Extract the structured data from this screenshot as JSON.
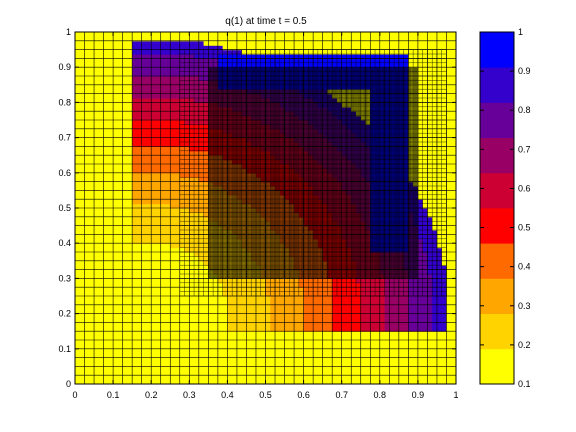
{
  "chart_data": {
    "type": "heatmap",
    "title": "q(1)   at time t = 0.5",
    "xlabel": "",
    "ylabel": "",
    "xlim": [
      0,
      1
    ],
    "ylim": [
      0,
      1
    ],
    "xticks": [
      0,
      0.1,
      0.2,
      0.3,
      0.4,
      0.5,
      0.6,
      0.7,
      0.8,
      0.9,
      1
    ],
    "xtick_labels": [
      "0",
      "0.1",
      "0.2",
      "0.3",
      "0.4",
      "0.5",
      "0.6",
      "0.7",
      "0.8",
      "0.9",
      "1"
    ],
    "yticks": [
      0,
      0.1,
      0.2,
      0.3,
      0.4,
      0.5,
      0.6,
      0.7,
      0.8,
      0.9,
      1
    ],
    "ytick_labels": [
      "0",
      "0.1",
      "0.2",
      "0.3",
      "0.4",
      "0.5",
      "0.6",
      "0.7",
      "0.8",
      "0.9",
      "1"
    ],
    "colorbar": {
      "range": [
        0.1,
        1
      ],
      "ticks": [
        0.1,
        0.2,
        0.3,
        0.4,
        0.5,
        0.6,
        0.7,
        0.8,
        0.9,
        1
      ],
      "tick_labels": [
        "0.1",
        "0.2",
        "0.3",
        "0.4",
        "0.5",
        "0.6",
        "0.7",
        "0.8",
        "0.9",
        "1"
      ],
      "colors": [
        "#ffff00",
        "#ffd300",
        "#ffa600",
        "#ff6a00",
        "#ff0000",
        "#cc0033",
        "#990066",
        "#660099",
        "#3300cc",
        "#0000ff"
      ]
    },
    "grid": true,
    "mesh_levels": [
      {
        "level": 1,
        "cells_x": 40,
        "cells_y": 40,
        "region": {
          "x": [
            0,
            1
          ],
          "y": [
            0,
            1
          ]
        }
      },
      {
        "level": 2,
        "cells_x": 2,
        "cells_y": 2,
        "region": {
          "x": [
            0.275,
            0.975
          ],
          "y": [
            0.25,
            0.95
          ]
        }
      },
      {
        "level": 3,
        "cells_x": 4,
        "cells_y": 4,
        "region": {
          "x": [
            0.35,
            0.9
          ],
          "y": [
            0.3,
            0.9
          ]
        }
      }
    ]
  }
}
